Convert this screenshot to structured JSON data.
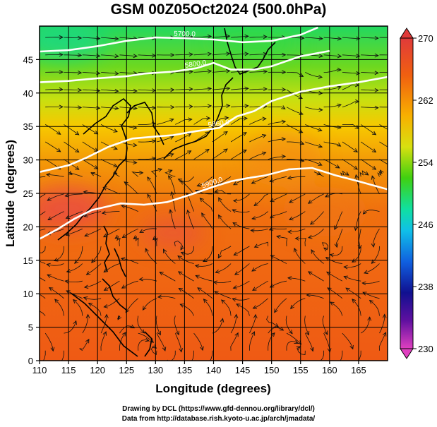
{
  "title": "GSM 00Z05Oct2024 (500.0hPa)",
  "chart_data": {
    "type": "heatmap",
    "title": "GSM 00Z05Oct2024 (500.0hPa)",
    "xlabel": "Longitude (degrees)",
    "ylabel": "Latitude  (degrees)",
    "xlim": [
      110,
      170
    ],
    "ylim": [
      0,
      50
    ],
    "xticks": [
      110,
      115,
      120,
      125,
      130,
      135,
      140,
      145,
      150,
      155,
      160,
      165
    ],
    "yticks": [
      0,
      5,
      10,
      15,
      20,
      25,
      30,
      35,
      40,
      45
    ],
    "grid": true,
    "colorbar": {
      "position": "right",
      "range": [
        230,
        270
      ],
      "ticks": [
        230,
        238,
        246,
        254,
        262,
        270
      ],
      "colors": [
        "#e040c0",
        "#7010a0",
        "#101090",
        "#1050e0",
        "#10c0e0",
        "#10e080",
        "#40d010",
        "#c0e010",
        "#ffb000",
        "#f06010",
        "#e03030"
      ]
    },
    "contours": [
      {
        "label": "5700.0",
        "points": [
          [
            110,
            46.2
          ],
          [
            115,
            46.4
          ],
          [
            120,
            47
          ],
          [
            125,
            47.8
          ],
          [
            130,
            48.3
          ],
          [
            135,
            48.2
          ],
          [
            140,
            48.0
          ],
          [
            145,
            47.6
          ],
          [
            150,
            47.8
          ],
          [
            155,
            48.7
          ],
          [
            158,
            49.8
          ]
        ]
      },
      {
        "label": "5800.0",
        "points": [
          [
            110,
            41.6
          ],
          [
            115,
            41.8
          ],
          [
            120,
            42.2
          ],
          [
            125,
            42.5
          ],
          [
            128,
            42.9
          ],
          [
            133,
            43.2
          ],
          [
            137,
            43.7
          ],
          [
            140,
            44.5
          ],
          [
            143,
            43.5
          ],
          [
            147,
            43.5
          ],
          [
            150,
            44.0
          ],
          [
            155,
            45.5
          ],
          [
            160,
            46.3
          ]
        ]
      },
      {
        "label": "5860.0",
        "points": [
          [
            110,
            28.2
          ],
          [
            115,
            29.2
          ],
          [
            118,
            30.3
          ],
          [
            122,
            32
          ],
          [
            126,
            33.2
          ],
          [
            130,
            33.5
          ],
          [
            133,
            33.7
          ],
          [
            137,
            34.3
          ],
          [
            141,
            34.8
          ],
          [
            144,
            36.5
          ],
          [
            147,
            37.3
          ],
          [
            150,
            38.8
          ],
          [
            155,
            40.2
          ],
          [
            160,
            41.0
          ],
          [
            165,
            41.6
          ],
          [
            170,
            42.4
          ]
        ]
      },
      {
        "label": "5900.0",
        "points": [
          [
            110,
            18.2
          ],
          [
            113,
            19.6
          ],
          [
            116,
            21.2
          ],
          [
            119,
            22.5
          ],
          [
            124,
            23.5
          ],
          [
            128,
            23.3
          ],
          [
            132,
            23.7
          ],
          [
            136,
            24.8
          ],
          [
            140,
            26.0
          ],
          [
            143,
            26.8
          ],
          [
            146,
            27.3
          ],
          [
            149,
            27.7
          ],
          [
            153,
            28.6
          ],
          [
            157,
            28.8
          ],
          [
            161,
            27.7
          ],
          [
            165,
            26.8
          ],
          [
            170,
            25.6
          ]
        ]
      }
    ],
    "stream_arrows": "wind streamlines at 500.0hPa"
  },
  "credits": {
    "line1": "Drawing by DCL (https://www.gfd-dennou.org/library/dcl/)",
    "line2": "Data from http://database.rish.kyoto-u.ac.jp/arch/jmadata/"
  }
}
